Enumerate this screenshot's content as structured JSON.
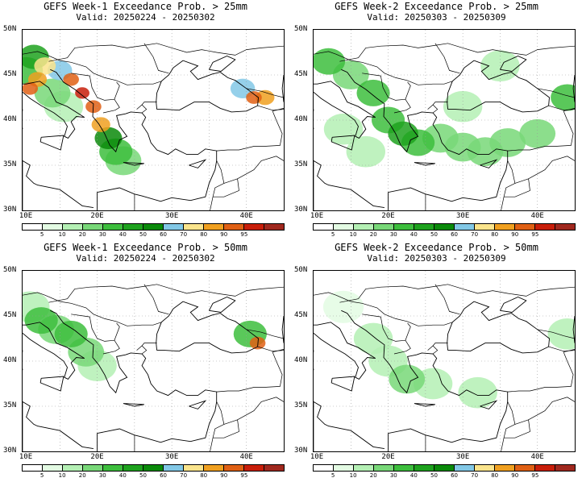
{
  "panels": [
    {
      "title": "GEFS Week-1 Exceedance Prob. > 25mm",
      "valid": "Valid: 20250224 - 20250302",
      "blobs": [
        {
          "lon": 14.0,
          "lat": 43.0,
          "prob": 20
        },
        {
          "lon": 15.5,
          "lat": 41.5,
          "prob": 10
        },
        {
          "lon": 10.5,
          "lat": 45.5,
          "prob": 30
        },
        {
          "lon": 12.0,
          "lat": 44.5,
          "prob": 80
        },
        {
          "lon": 11.0,
          "lat": 43.5,
          "prob": 90
        },
        {
          "lon": 13.0,
          "lat": 46.0,
          "prob": 70
        },
        {
          "lon": 15.0,
          "lat": 45.5,
          "prob": 60
        },
        {
          "lon": 16.5,
          "lat": 44.5,
          "prob": 90
        },
        {
          "lon": 18.0,
          "lat": 43.0,
          "prob": 95
        },
        {
          "lon": 19.5,
          "lat": 41.5,
          "prob": 90
        },
        {
          "lon": 20.5,
          "lat": 39.5,
          "prob": 80
        },
        {
          "lon": 21.5,
          "lat": 38.0,
          "prob": 50
        },
        {
          "lon": 22.5,
          "lat": 36.5,
          "prob": 30
        },
        {
          "lon": 23.5,
          "lat": 35.5,
          "prob": 20
        },
        {
          "lon": 11.5,
          "lat": 47.0,
          "prob": 40
        },
        {
          "lon": 41.0,
          "lat": 42.5,
          "prob": 90
        },
        {
          "lon": 39.5,
          "lat": 43.5,
          "prob": 60
        },
        {
          "lon": 42.5,
          "lat": 42.5,
          "prob": 80
        }
      ]
    },
    {
      "title": "GEFS Week-2 Exceedance Prob. > 25mm",
      "valid": "Valid: 20250303 - 20250309",
      "blobs": [
        {
          "lon": 12.0,
          "lat": 46.5,
          "prob": 30
        },
        {
          "lon": 15.0,
          "lat": 45.0,
          "prob": 20
        },
        {
          "lon": 18.0,
          "lat": 43.0,
          "prob": 30
        },
        {
          "lon": 20.0,
          "lat": 40.0,
          "prob": 30
        },
        {
          "lon": 22.0,
          "lat": 38.5,
          "prob": 40
        },
        {
          "lon": 24.0,
          "lat": 37.5,
          "prob": 30
        },
        {
          "lon": 27.0,
          "lat": 38.0,
          "prob": 20
        },
        {
          "lon": 30.0,
          "lat": 37.0,
          "prob": 20
        },
        {
          "lon": 33.0,
          "lat": 36.5,
          "prob": 20
        },
        {
          "lon": 36.0,
          "lat": 37.5,
          "prob": 20
        },
        {
          "lon": 40.0,
          "lat": 38.5,
          "prob": 20
        },
        {
          "lon": 44.0,
          "lat": 42.5,
          "prob": 30
        },
        {
          "lon": 14.0,
          "lat": 39.0,
          "prob": 10
        },
        {
          "lon": 17.0,
          "lat": 36.5,
          "prob": 10
        },
        {
          "lon": 30.0,
          "lat": 41.5,
          "prob": 10
        },
        {
          "lon": 35.0,
          "lat": 46.0,
          "prob": 10
        }
      ]
    },
    {
      "title": "GEFS Week-1 Exceedance Prob. > 50mm",
      "valid": "Valid: 20250224 - 20250302",
      "blobs": [
        {
          "lon": 12.5,
          "lat": 44.5,
          "prob": 30
        },
        {
          "lon": 14.5,
          "lat": 43.5,
          "prob": 20
        },
        {
          "lon": 16.5,
          "lat": 43.0,
          "prob": 30
        },
        {
          "lon": 18.5,
          "lat": 41.0,
          "prob": 20
        },
        {
          "lon": 20.0,
          "lat": 39.5,
          "prob": 10
        },
        {
          "lon": 11.0,
          "lat": 46.0,
          "prob": 10
        },
        {
          "lon": 41.5,
          "lat": 42.0,
          "prob": 90
        },
        {
          "lon": 40.5,
          "lat": 43.0,
          "prob": 30
        }
      ]
    },
    {
      "title": "GEFS Week-2 Exceedance Prob. > 50mm",
      "valid": "Valid: 20250303 - 20250309",
      "blobs": [
        {
          "lon": 18.0,
          "lat": 42.5,
          "prob": 10
        },
        {
          "lon": 20.0,
          "lat": 40.0,
          "prob": 10
        },
        {
          "lon": 22.5,
          "lat": 38.0,
          "prob": 20
        },
        {
          "lon": 26.0,
          "lat": 37.5,
          "prob": 10
        },
        {
          "lon": 32.0,
          "lat": 36.5,
          "prob": 10
        },
        {
          "lon": 44.0,
          "lat": 43.0,
          "prob": 10
        },
        {
          "lon": 14.0,
          "lat": 46.0,
          "prob": 5
        }
      ]
    }
  ],
  "axes": {
    "lon_labels": [
      "10E",
      "20E",
      "30E",
      "40E"
    ],
    "lat_labels": [
      "30N",
      "35N",
      "40N",
      "45N",
      "50N"
    ],
    "lon_range": [
      10,
      45
    ],
    "lat_range": [
      30,
      50
    ]
  },
  "colorbar": {
    "ticks": [
      "5",
      "10",
      "20",
      "30",
      "40",
      "50",
      "60",
      "70",
      "80",
      "90",
      "95"
    ],
    "colors": [
      "#ffffff",
      "#e3fbe3",
      "#b4f0b4",
      "#78d878",
      "#3dbe3d",
      "#1ea21e",
      "#0a8a0a",
      "#82c8e6",
      "#fae48c",
      "#f0a020",
      "#e06014",
      "#c81e0a",
      "#a0281e"
    ]
  }
}
